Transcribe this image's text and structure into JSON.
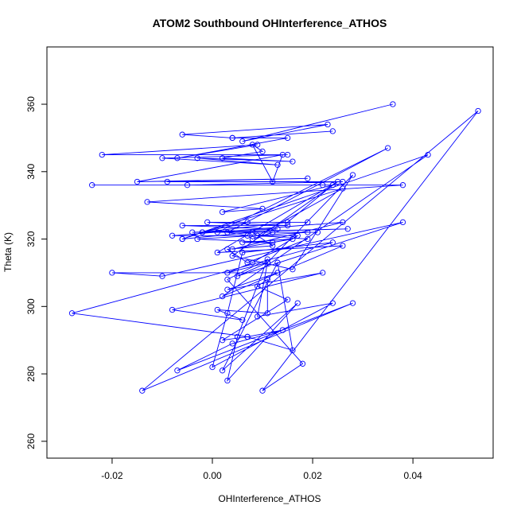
{
  "chart_data": {
    "type": "line",
    "title": "ATOM2 Southbound OHInterference_ATHOS",
    "xlabel": "OHInterference_ATHOS",
    "ylabel": "Theta (K)",
    "xlim": [
      -0.033,
      0.056
    ],
    "ylim": [
      255,
      377
    ],
    "x_ticks": [
      -0.02,
      0.0,
      0.02,
      0.04
    ],
    "x_tick_labels": [
      "-0.02",
      "0.00",
      "0.02",
      "0.04"
    ],
    "y_ticks": [
      260,
      280,
      300,
      320,
      340,
      360
    ],
    "y_tick_labels": [
      "260",
      "280",
      "300",
      "320",
      "340",
      "360"
    ],
    "grid": false,
    "markers": "open-circle",
    "color": "#0000ff",
    "series": [
      {
        "x": [
          0.036,
          0.006,
          0.023,
          -0.006,
          0.004,
          0.024,
          0.004,
          0.015,
          -0.007,
          0.009,
          -0.022,
          0.015,
          -0.01,
          0.013,
          -0.003,
          0.016,
          0.002,
          0.01,
          0.008,
          0.012,
          0.014,
          -0.015,
          0.019,
          -0.009,
          0.026,
          -0.005,
          0.022,
          -0.024,
          0.038,
          -0.013,
          0.01,
          0.002,
          0.024,
          0.015,
          -0.002,
          0.007,
          0.019,
          -0.001,
          0.015,
          -0.006,
          0.013,
          -0.004,
          0.021,
          -0.002,
          0.027,
          0.001,
          0.035,
          0.003,
          0.007,
          0.008,
          0.012,
          0.019,
          -0.003,
          0.012,
          0.006,
          0.016,
          0.004,
          0.026,
          -0.008,
          0.017,
          0.008,
          0.003,
          0.011,
          0.005,
          0.038,
          -0.01,
          -0.02,
          0.013,
          0.003,
          0.022,
          -0.008,
          0.006,
          0.001,
          0.011,
          0.011,
          0.009,
          0.015,
          0.002,
          0.007,
          0.014,
          0.004,
          -0.007,
          0.028,
          -0.014,
          0.053,
          0.01,
          0.018,
          0.003,
          0.011,
          0.005,
          0.003,
          0.017,
          0.002,
          0.013,
          0.016,
          0.007,
          -0.028,
          0.024,
          0.006,
          0.003,
          0.0,
          0.024,
          0.009,
          0.011,
          0.028,
          0.016,
          0.004,
          0.025,
          0.001,
          0.026,
          0.002,
          0.043,
          -0.006,
          0.008,
          0.012,
          0.003,
          0.007,
          0.019,
          0.009,
          0.026,
          -0.006
        ],
        "y": [
          360,
          349,
          354,
          351,
          350,
          352,
          350,
          350,
          344,
          348,
          345,
          345,
          344,
          342,
          344,
          343,
          344,
          346,
          348,
          337,
          345,
          337,
          338,
          337,
          337,
          336,
          336,
          336,
          336,
          331,
          329,
          328,
          336,
          325,
          322,
          325,
          325,
          325,
          324,
          324,
          323,
          322,
          322,
          322,
          323,
          322,
          347,
          322,
          321,
          320,
          322,
          322,
          320,
          319,
          319,
          320,
          317,
          325,
          321,
          321,
          313,
          310,
          313,
          309,
          325,
          309,
          310,
          310,
          305,
          310,
          299,
          296,
          299,
          298,
          308,
          306,
          302,
          290,
          291,
          293,
          289,
          281,
          301,
          275,
          358,
          275,
          283,
          308,
          314,
          291,
          278,
          301,
          281,
          313,
          287,
          291,
          298,
          319,
          316,
          298,
          282,
          301,
          297,
          313,
          339,
          311,
          315,
          337,
          316,
          318,
          303,
          345,
          320,
          322,
          318,
          317,
          313,
          320,
          321,
          335,
          320
        ]
      }
    ]
  }
}
